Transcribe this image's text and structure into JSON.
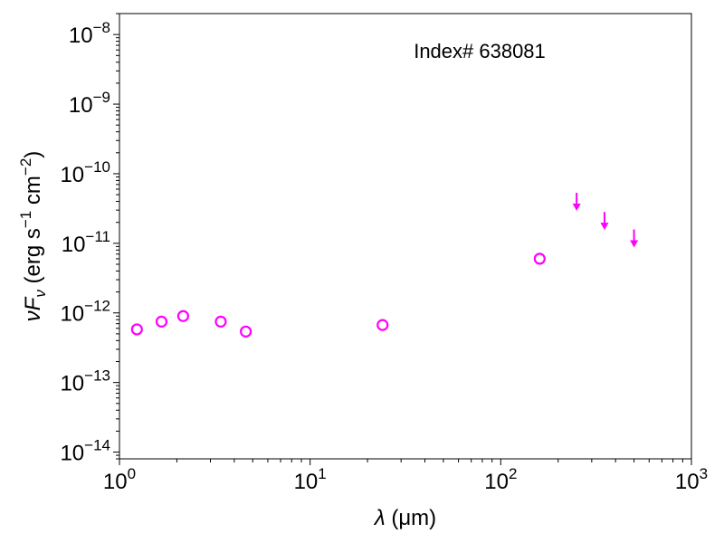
{
  "chart_data": {
    "type": "scatter",
    "x_scale": "log",
    "y_scale": "log",
    "xlim": [
      1,
      1000
    ],
    "ylim": [
      8e-15,
      2e-08
    ],
    "x_ticks": [
      {
        "value": 1,
        "base": "10",
        "exp": "0"
      },
      {
        "value": 10,
        "base": "10",
        "exp": "1"
      },
      {
        "value": 100,
        "base": "10",
        "exp": "2"
      },
      {
        "value": 1000,
        "base": "10",
        "exp": "3"
      }
    ],
    "y_ticks": [
      {
        "value": 1e-14,
        "base": "10",
        "exp": "−14"
      },
      {
        "value": 1e-13,
        "base": "10",
        "exp": "−13"
      },
      {
        "value": 1e-12,
        "base": "10",
        "exp": "−12"
      },
      {
        "value": 1e-11,
        "base": "10",
        "exp": "−11"
      },
      {
        "value": 1e-10,
        "base": "10",
        "exp": "−10"
      },
      {
        "value": 1e-09,
        "base": "10",
        "exp": "−9"
      },
      {
        "value": 1e-08,
        "base": "10",
        "exp": "−8"
      }
    ],
    "xlabel": {
      "symbol": "λ",
      "unit": " (μm)"
    },
    "ylabel": {
      "nu": "ν",
      "F": "F",
      "sub": "ν",
      "unit_start": " (erg s",
      "exp1": "−1",
      "unit_mid": " cm",
      "exp2": "−2",
      "unit_end": ")"
    },
    "annotation": "Index# 638081",
    "grid": false,
    "color": "#ff00ff",
    "detections": [
      {
        "x": 1.235,
        "y": 5.8e-13
      },
      {
        "x": 1.662,
        "y": 7.5e-13
      },
      {
        "x": 2.159,
        "y": 9e-13
      },
      {
        "x": 3.4,
        "y": 7.5e-13
      },
      {
        "x": 4.6,
        "y": 5.4e-13
      },
      {
        "x": 24,
        "y": 6.7e-13
      },
      {
        "x": 160,
        "y": 6e-12
      }
    ],
    "upper_limits": [
      {
        "x": 250,
        "y": 3.3e-11
      },
      {
        "x": 350,
        "y": 1.75e-11
      },
      {
        "x": 500,
        "y": 9.8e-12
      }
    ]
  }
}
